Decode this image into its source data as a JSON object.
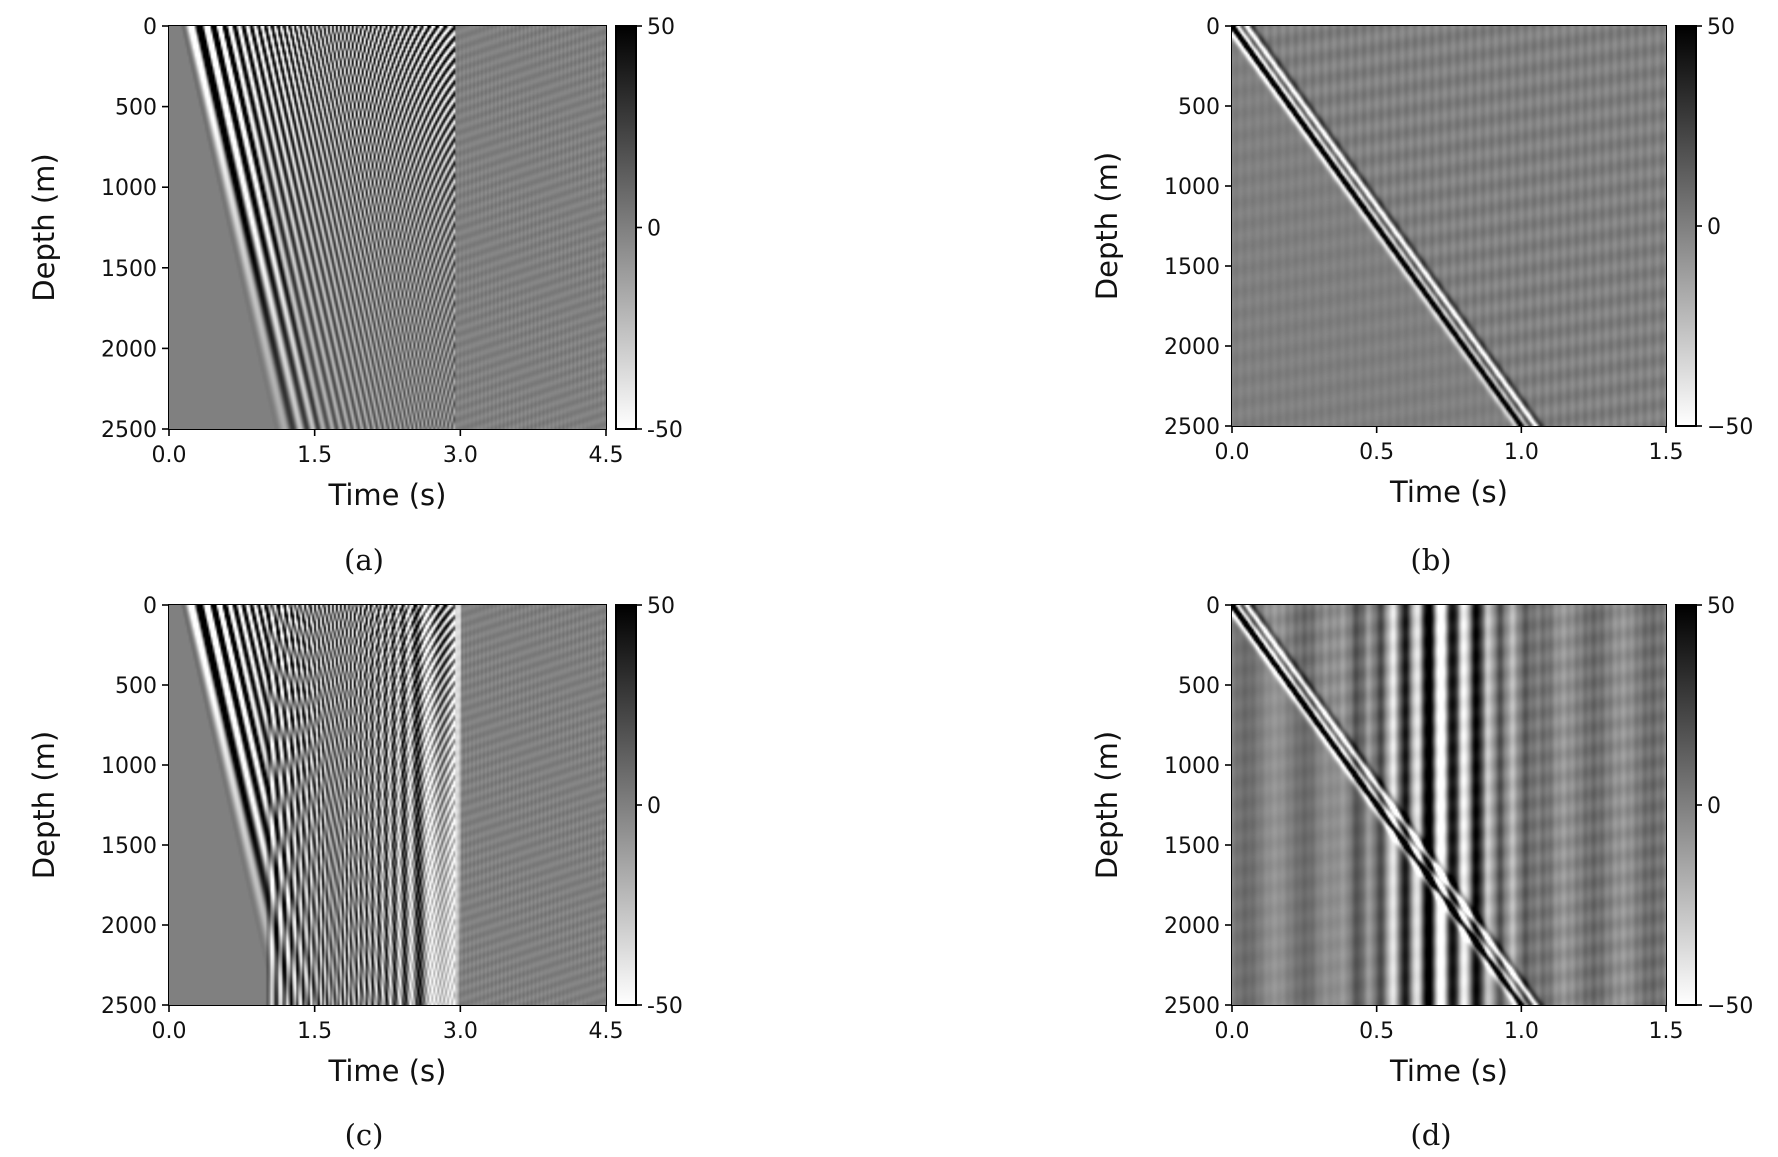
{
  "chart_data": [
    {
      "type": "heatmap",
      "panel": "a",
      "caption": "(a)",
      "xlabel": "Time (s)",
      "ylabel": "Depth (m)",
      "xlim": [
        0.0,
        4.5
      ],
      "ylim": [
        2500,
        0
      ],
      "xticks": [
        "0.0",
        "1.5",
        "3.0",
        "4.5"
      ],
      "xtick_values": [
        0.0,
        1.5,
        3.0,
        4.5
      ],
      "yticks": [
        "0",
        "500",
        "1000",
        "1500",
        "2000",
        "2500"
      ],
      "ytick_values": [
        0,
        500,
        1000,
        1500,
        2000,
        2500
      ],
      "colorbar": {
        "ticks": [
          "50",
          "0",
          "-50"
        ],
        "tick_values": [
          50,
          0,
          -50
        ],
        "range": [
          -50,
          50
        ]
      },
      "pattern": "sweep"
    },
    {
      "type": "heatmap",
      "panel": "b",
      "caption": "(b)",
      "xlabel": "Time (s)",
      "ylabel": "Depth (m)",
      "xlim": [
        0.0,
        1.5
      ],
      "ylim": [
        2500,
        0
      ],
      "xticks": [
        "0.0",
        "0.5",
        "1.0",
        "1.5"
      ],
      "xtick_values": [
        0.0,
        0.5,
        1.0,
        1.5
      ],
      "yticks": [
        "0",
        "500",
        "1000",
        "1500",
        "2000",
        "2500"
      ],
      "ytick_values": [
        0,
        500,
        1000,
        1500,
        2000,
        2500
      ],
      "colorbar": {
        "ticks": [
          "50",
          "0",
          "−50"
        ],
        "tick_values": [
          50,
          0,
          -50
        ],
        "range": [
          -50,
          50
        ]
      },
      "pattern": "correlated"
    },
    {
      "type": "heatmap",
      "panel": "c",
      "caption": "(c)",
      "xlabel": "Time (s)",
      "ylabel": "Depth (m)",
      "xlim": [
        0.0,
        4.5
      ],
      "ylim": [
        2500,
        0
      ],
      "xticks": [
        "0.0",
        "1.5",
        "3.0",
        "4.5"
      ],
      "xtick_values": [
        0.0,
        1.5,
        3.0,
        4.5
      ],
      "yticks": [
        "0",
        "500",
        "1000",
        "1500",
        "2000",
        "2500"
      ],
      "ytick_values": [
        0,
        500,
        1000,
        1500,
        2000,
        2500
      ],
      "colorbar": {
        "ticks": [
          "50",
          "0",
          "-50"
        ],
        "tick_values": [
          50,
          0,
          -50
        ],
        "range": [
          -50,
          50
        ]
      },
      "pattern": "sweep_noise",
      "noise_onset_s": 1.0
    },
    {
      "type": "heatmap",
      "panel": "d",
      "caption": "(d)",
      "xlabel": "Time (s)",
      "ylabel": "Depth (m)",
      "xlim": [
        0.0,
        1.5
      ],
      "ylim": [
        2500,
        0
      ],
      "xticks": [
        "0.0",
        "0.5",
        "1.0",
        "1.5"
      ],
      "xtick_values": [
        0.0,
        0.5,
        1.0,
        1.5
      ],
      "yticks": [
        "0",
        "500",
        "1000",
        "1500",
        "2000",
        "2500"
      ],
      "ytick_values": [
        0,
        500,
        1000,
        1500,
        2000,
        2500
      ],
      "colorbar": {
        "ticks": [
          "50",
          "0",
          "−50"
        ],
        "tick_values": [
          50,
          0,
          -50
        ],
        "range": [
          -50,
          50
        ]
      },
      "pattern": "correlated_noise"
    }
  ]
}
